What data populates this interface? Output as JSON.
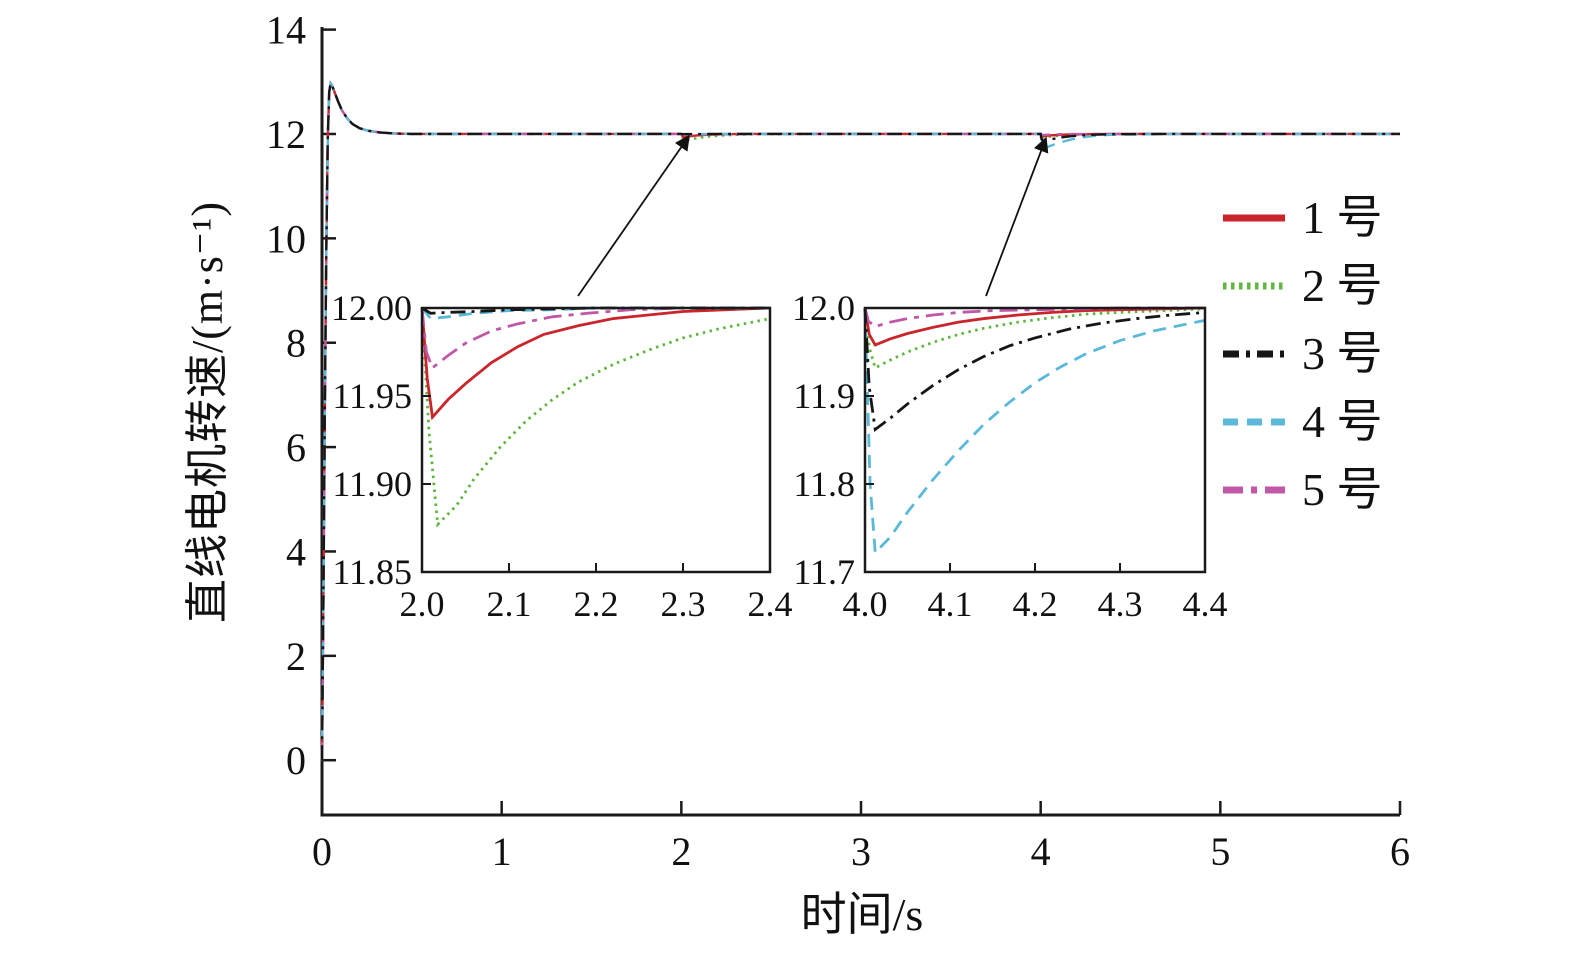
{
  "colors": {
    "axis": "#1a1a1a",
    "background": "#ffffff",
    "arrow": "#111111"
  },
  "chart_data": {
    "type": "line",
    "title": "",
    "xlabel": "时间/s",
    "ylabel": "直线电机转速/(m·s⁻¹)",
    "legend_position": "right",
    "main": {
      "xlim": [
        0,
        6
      ],
      "ylim": [
        0,
        14
      ],
      "xticks": [
        0,
        1,
        2,
        3,
        4,
        5,
        6
      ],
      "yticks": [
        0,
        2,
        4,
        6,
        8,
        10,
        12,
        14
      ],
      "steady_value": 12.0
    },
    "startup_transient": [
      [
        0,
        0
      ],
      [
        0.008,
        3.2
      ],
      [
        0.016,
        6.8
      ],
      [
        0.024,
        9.8
      ],
      [
        0.032,
        11.9
      ],
      [
        0.04,
        12.8
      ],
      [
        0.048,
        12.97
      ],
      [
        0.056,
        12.93
      ],
      [
        0.07,
        12.8
      ],
      [
        0.09,
        12.62
      ],
      [
        0.11,
        12.46
      ],
      [
        0.14,
        12.3
      ],
      [
        0.17,
        12.19
      ],
      [
        0.21,
        12.11
      ],
      [
        0.26,
        12.06
      ],
      [
        0.32,
        12.03
      ],
      [
        0.4,
        12.01
      ],
      [
        0.5,
        12.0
      ],
      [
        0.6,
        12.0
      ]
    ],
    "series": [
      {
        "label": "1 号",
        "color": "#c9252b",
        "dash": "solid",
        "dip_t2": [
          [
            2.0,
            12.0
          ],
          [
            2.006,
            11.96
          ],
          [
            2.012,
            11.938
          ],
          [
            2.03,
            11.948
          ],
          [
            2.05,
            11.957
          ],
          [
            2.08,
            11.969
          ],
          [
            2.11,
            11.978
          ],
          [
            2.14,
            11.985
          ],
          [
            2.18,
            11.99
          ],
          [
            2.22,
            11.994
          ],
          [
            2.26,
            11.996
          ],
          [
            2.3,
            11.998
          ],
          [
            2.35,
            11.999
          ],
          [
            2.4,
            12.0
          ]
        ],
        "dip_t4": [
          [
            4.0,
            12.0
          ],
          [
            4.005,
            11.97
          ],
          [
            4.012,
            11.958
          ],
          [
            4.03,
            11.965
          ],
          [
            4.05,
            11.971
          ],
          [
            4.08,
            11.978
          ],
          [
            4.11,
            11.984
          ],
          [
            4.14,
            11.988
          ],
          [
            4.18,
            11.992
          ],
          [
            4.22,
            11.995
          ],
          [
            4.26,
            11.997
          ],
          [
            4.3,
            11.998
          ],
          [
            4.35,
            11.999
          ],
          [
            4.4,
            12.0
          ]
        ]
      },
      {
        "label": "2 号",
        "color": "#5fb53d",
        "dash": "dotted",
        "dip_t2": [
          [
            2.0,
            12.0
          ],
          [
            2.008,
            11.93
          ],
          [
            2.018,
            11.877
          ],
          [
            2.04,
            11.888
          ],
          [
            2.06,
            11.903
          ],
          [
            2.09,
            11.921
          ],
          [
            2.12,
            11.936
          ],
          [
            2.15,
            11.948
          ],
          [
            2.18,
            11.958
          ],
          [
            2.22,
            11.968
          ],
          [
            2.26,
            11.976
          ],
          [
            2.3,
            11.983
          ],
          [
            2.34,
            11.988
          ],
          [
            2.4,
            11.994
          ]
        ],
        "dip_t4": [
          [
            4.0,
            12.0
          ],
          [
            4.005,
            11.955
          ],
          [
            4.012,
            11.932
          ],
          [
            4.03,
            11.941
          ],
          [
            4.05,
            11.95
          ],
          [
            4.08,
            11.961
          ],
          [
            4.11,
            11.97
          ],
          [
            4.14,
            11.977
          ],
          [
            4.18,
            11.984
          ],
          [
            4.22,
            11.989
          ],
          [
            4.26,
            11.993
          ],
          [
            4.3,
            11.995
          ],
          [
            4.35,
            11.997
          ],
          [
            4.4,
            11.999
          ]
        ]
      },
      {
        "label": "3 号",
        "color": "#161616",
        "dash": "dashdot",
        "dip_t2": [
          [
            2.0,
            12.0
          ],
          [
            2.01,
            11.997
          ],
          [
            2.03,
            11.9975
          ],
          [
            2.06,
            11.998
          ],
          [
            2.1,
            11.999
          ],
          [
            2.15,
            11.9995
          ],
          [
            2.2,
            12.0
          ],
          [
            2.4,
            12.0
          ]
        ],
        "dip_t4": [
          [
            4.0,
            12.0
          ],
          [
            4.005,
            11.91
          ],
          [
            4.012,
            11.862
          ],
          [
            4.03,
            11.875
          ],
          [
            4.05,
            11.891
          ],
          [
            4.08,
            11.912
          ],
          [
            4.11,
            11.93
          ],
          [
            4.14,
            11.945
          ],
          [
            4.17,
            11.957
          ],
          [
            4.2,
            11.966
          ],
          [
            4.24,
            11.976
          ],
          [
            4.28,
            11.983
          ],
          [
            4.32,
            11.988
          ],
          [
            4.36,
            11.992
          ],
          [
            4.4,
            11.995
          ]
        ]
      },
      {
        "label": "4 号",
        "color": "#5bb8d9",
        "dash": "dashed",
        "dip_t2": [
          [
            2.0,
            12.0
          ],
          [
            2.01,
            11.994
          ],
          [
            2.03,
            11.995
          ],
          [
            2.06,
            11.997
          ],
          [
            2.1,
            11.9985
          ],
          [
            2.15,
            11.999
          ],
          [
            2.2,
            12.0
          ],
          [
            2.4,
            12.0
          ]
        ],
        "dip_t4": [
          [
            4.0,
            12.0
          ],
          [
            4.006,
            11.8
          ],
          [
            4.012,
            11.722
          ],
          [
            4.03,
            11.74
          ],
          [
            4.05,
            11.768
          ],
          [
            4.08,
            11.805
          ],
          [
            4.11,
            11.838
          ],
          [
            4.14,
            11.868
          ],
          [
            4.17,
            11.893
          ],
          [
            4.2,
            11.915
          ],
          [
            4.23,
            11.933
          ],
          [
            4.26,
            11.948
          ],
          [
            4.3,
            11.963
          ],
          [
            4.34,
            11.974
          ],
          [
            4.4,
            11.986
          ]
        ]
      },
      {
        "label": "5 号",
        "color": "#c057a7",
        "dash": "dashdot_long",
        "dip_t2": [
          [
            2.0,
            12.0
          ],
          [
            2.005,
            11.975
          ],
          [
            2.012,
            11.966
          ],
          [
            2.03,
            11.973
          ],
          [
            2.05,
            11.98
          ],
          [
            2.08,
            11.987
          ],
          [
            2.11,
            11.991
          ],
          [
            2.15,
            11.995
          ],
          [
            2.19,
            11.997
          ],
          [
            2.24,
            11.999
          ],
          [
            2.3,
            12.0
          ],
          [
            2.4,
            12.0
          ]
        ],
        "dip_t4": [
          [
            4.0,
            12.0
          ],
          [
            4.004,
            11.985
          ],
          [
            4.012,
            11.979
          ],
          [
            4.03,
            11.984
          ],
          [
            4.05,
            11.988
          ],
          [
            4.08,
            11.992
          ],
          [
            4.11,
            11.995
          ],
          [
            4.15,
            11.997
          ],
          [
            4.2,
            11.998
          ],
          [
            4.25,
            11.999
          ],
          [
            4.3,
            12.0
          ],
          [
            4.4,
            12.0
          ]
        ]
      }
    ],
    "inset_t2": {
      "xlim": [
        2.0,
        2.4
      ],
      "ylim": [
        11.85,
        12.0
      ],
      "xticks": [
        2.0,
        2.1,
        2.2,
        2.3,
        2.4
      ],
      "yticks": [
        11.85,
        11.9,
        11.95,
        12.0
      ],
      "xtick_labels": [
        "2.0",
        "2.1",
        "2.2",
        "2.3",
        "2.4"
      ],
      "ytick_labels": [
        "11.85",
        "11.90",
        "11.95",
        "12.00"
      ]
    },
    "inset_t4": {
      "xlim": [
        4.0,
        4.4
      ],
      "ylim": [
        11.7,
        12.0
      ],
      "xticks": [
        4.0,
        4.1,
        4.2,
        4.3,
        4.4
      ],
      "yticks": [
        11.7,
        11.8,
        11.9,
        12.0
      ],
      "xtick_labels": [
        "4.0",
        "4.1",
        "4.2",
        "4.3",
        "4.4"
      ],
      "ytick_labels": [
        "11.7",
        "11.8",
        "11.9",
        "12.0"
      ]
    }
  }
}
